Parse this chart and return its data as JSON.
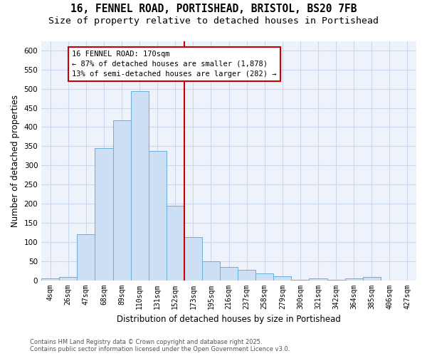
{
  "title_line1": "16, FENNEL ROAD, PORTISHEAD, BRISTOL, BS20 7FB",
  "title_line2": "Size of property relative to detached houses in Portishead",
  "xlabel": "Distribution of detached houses by size in Portishead",
  "ylabel": "Number of detached properties",
  "categories": [
    "4sqm",
    "26sqm",
    "47sqm",
    "68sqm",
    "89sqm",
    "110sqm",
    "131sqm",
    "152sqm",
    "173sqm",
    "195sqm",
    "216sqm",
    "237sqm",
    "258sqm",
    "279sqm",
    "300sqm",
    "321sqm",
    "342sqm",
    "364sqm",
    "385sqm",
    "406sqm",
    "427sqm"
  ],
  "values": [
    4,
    8,
    120,
    345,
    418,
    493,
    337,
    195,
    112,
    50,
    35,
    27,
    18,
    10,
    1,
    5,
    1,
    5,
    8,
    0,
    0
  ],
  "bar_color": "#ccdff5",
  "bar_edge_color": "#6aaed6",
  "vline_x": 7.5,
  "vline_color": "#cc0000",
  "annotation_text": "16 FENNEL ROAD: 170sqm\n← 87% of detached houses are smaller (1,878)\n13% of semi-detached houses are larger (282) →",
  "annotation_box_edgecolor": "#cc0000",
  "plot_bg_color": "#eef3fb",
  "fig_bg_color": "#ffffff",
  "grid_color": "#c8d8ee",
  "ylim": [
    0,
    625
  ],
  "yticks": [
    0,
    50,
    100,
    150,
    200,
    250,
    300,
    350,
    400,
    450,
    500,
    550,
    600
  ],
  "footer_line1": "Contains HM Land Registry data © Crown copyright and database right 2025.",
  "footer_line2": "Contains public sector information licensed under the Open Government Licence v3.0."
}
